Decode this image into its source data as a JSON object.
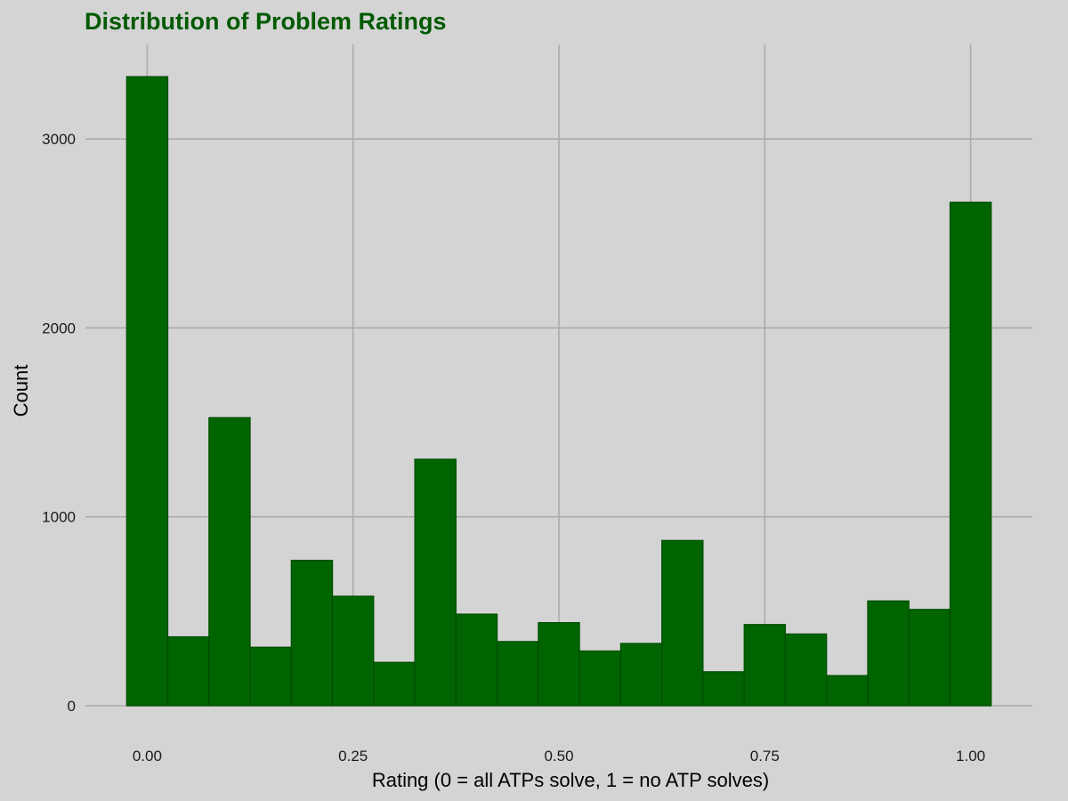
{
  "chart_data": {
    "type": "bar",
    "title": "Distribution of Problem Ratings",
    "xlabel": "Rating (0 = all ATPs solve, 1 = no ATP solves)",
    "ylabel": "Count",
    "bins": [
      {
        "x0": -0.025,
        "x1": 0.025,
        "count": 3330
      },
      {
        "x0": 0.025,
        "x1": 0.075,
        "count": 365
      },
      {
        "x0": 0.075,
        "x1": 0.125,
        "count": 1525
      },
      {
        "x0": 0.125,
        "x1": 0.175,
        "count": 310
      },
      {
        "x0": 0.175,
        "x1": 0.225,
        "count": 770
      },
      {
        "x0": 0.225,
        "x1": 0.275,
        "count": 580
      },
      {
        "x0": 0.275,
        "x1": 0.325,
        "count": 230
      },
      {
        "x0": 0.325,
        "x1": 0.375,
        "count": 1305
      },
      {
        "x0": 0.375,
        "x1": 0.425,
        "count": 485
      },
      {
        "x0": 0.425,
        "x1": 0.475,
        "count": 340
      },
      {
        "x0": 0.475,
        "x1": 0.525,
        "count": 440
      },
      {
        "x0": 0.525,
        "x1": 0.575,
        "count": 290
      },
      {
        "x0": 0.575,
        "x1": 0.625,
        "count": 330
      },
      {
        "x0": 0.625,
        "x1": 0.675,
        "count": 875
      },
      {
        "x0": 0.675,
        "x1": 0.725,
        "count": 180
      },
      {
        "x0": 0.725,
        "x1": 0.775,
        "count": 430
      },
      {
        "x0": 0.775,
        "x1": 0.825,
        "count": 380
      },
      {
        "x0": 0.825,
        "x1": 0.875,
        "count": 160
      },
      {
        "x0": 0.875,
        "x1": 0.925,
        "count": 555
      },
      {
        "x0": 0.925,
        "x1": 0.975,
        "count": 510
      },
      {
        "x0": 0.975,
        "x1": 1.025,
        "count": 2665
      }
    ],
    "x_ticks": [
      0,
      0.25,
      0.5,
      0.75,
      1
    ],
    "x_tick_labels": [
      "0.00",
      "0.25",
      "0.50",
      "0.75",
      "1.00"
    ],
    "y_ticks": [
      0,
      1000,
      2000,
      3000
    ],
    "y_tick_labels": [
      "0",
      "1000",
      "2000",
      "3000"
    ],
    "xlim": [
      -0.075,
      1.075
    ],
    "ylim": [
      0,
      3500
    ],
    "grid": true,
    "legend": "none",
    "colors": {
      "background": "#d4d4d4",
      "bar_fill": "#006400",
      "bar_stroke": "#004d00",
      "grid": "#ababab",
      "title": "#005a00"
    }
  }
}
